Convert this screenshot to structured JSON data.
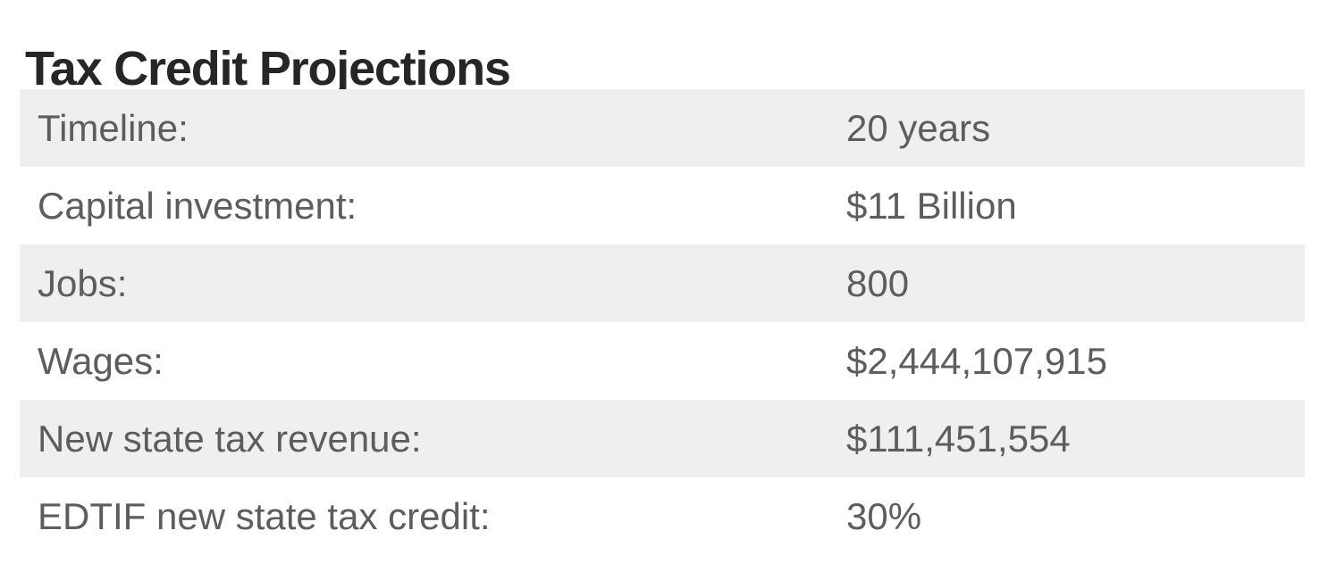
{
  "page": {
    "title": "Tax Credit Projections"
  },
  "colors": {
    "title_text": "#262628",
    "row_text": "#5c5d5f",
    "zebra_stripe": "#efefef",
    "background": "#ffffff"
  },
  "table": {
    "rows": [
      {
        "label": "Timeline:",
        "value": "20 years"
      },
      {
        "label": "Capital investment:",
        "value": "$11 Billion"
      },
      {
        "label": "Jobs:",
        "value": "800"
      },
      {
        "label": "Wages:",
        "value": "$2,444,107,915"
      },
      {
        "label": "New state tax revenue:",
        "value": "$111,451,554"
      },
      {
        "label": "EDTIF new state tax credit:",
        "value": "30%"
      }
    ]
  }
}
